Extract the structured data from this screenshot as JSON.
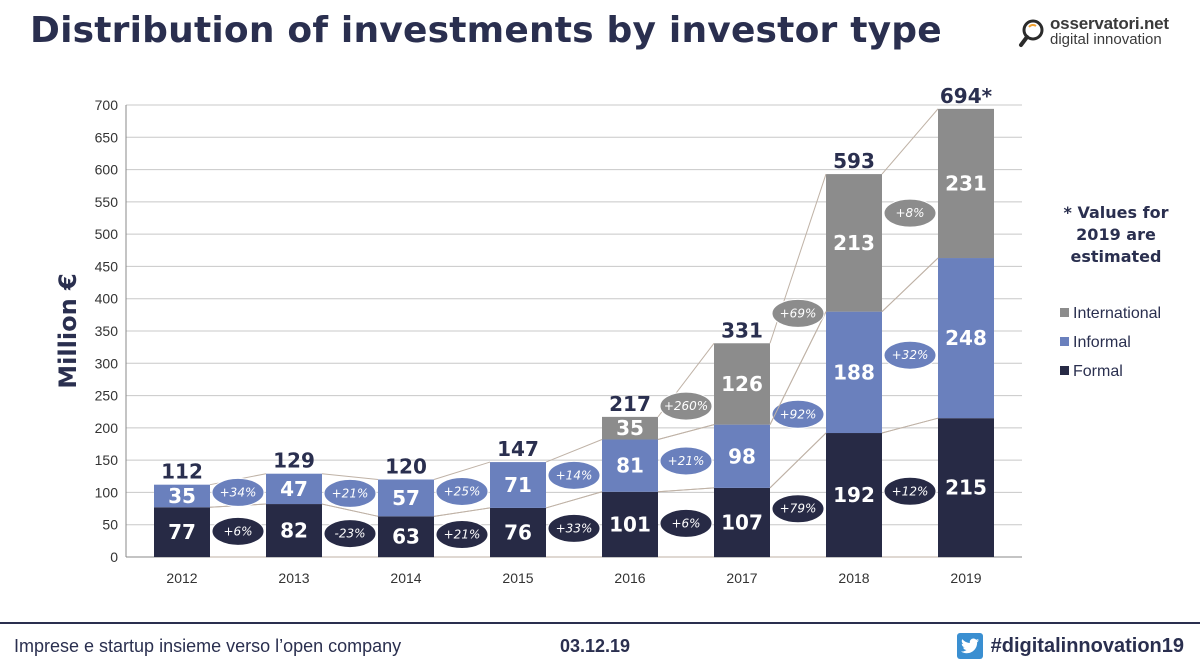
{
  "header": {
    "title": "Distribution of investments by investor type",
    "logo_line1": "osservatori.net",
    "logo_line2": "digital innovation",
    "logo_icon": "magnifier-icon"
  },
  "footer": {
    "left_text": "Imprese e startup insieme verso l’open company",
    "date": "03.12.19",
    "hashtag": "#digitalinnovation19",
    "twitter_icon": "twitter-icon"
  },
  "chart_data": {
    "type": "bar",
    "stacked": true,
    "title": "Distribution of investments by investor type",
    "xlabel": "",
    "ylabel": "Million €",
    "ylim": [
      0,
      700
    ],
    "yticks": [
      0,
      50,
      100,
      150,
      200,
      250,
      300,
      350,
      400,
      450,
      500,
      550,
      600,
      650,
      700
    ],
    "grid": true,
    "categories": [
      "2012",
      "2013",
      "2014",
      "2015",
      "2016",
      "2017",
      "2018",
      "2019"
    ],
    "series": [
      {
        "name": "Formal",
        "color": "#272a45",
        "values": [
          77,
          82,
          63,
          76,
          101,
          107,
          192,
          215
        ]
      },
      {
        "name": "Informal",
        "color": "#6a80bd",
        "values": [
          35,
          47,
          57,
          71,
          81,
          98,
          188,
          248
        ]
      },
      {
        "name": "International",
        "color": "#8c8c8c",
        "values": [
          null,
          null,
          null,
          null,
          35,
          126,
          213,
          231
        ]
      }
    ],
    "totals": [
      "112",
      "129",
      "120",
      "147",
      "217",
      "331",
      "593",
      "694*"
    ],
    "growth": {
      "Formal": [
        "+6%",
        "-23%",
        "+21%",
        "+33%",
        "+6%",
        "+79%",
        "+12%"
      ],
      "Informal": [
        "+34%",
        "+21%",
        "+25%",
        "+14%",
        "+21%",
        "+92%",
        "+32%"
      ],
      "International": [
        "+260%",
        "+69%",
        "+8%"
      ]
    },
    "legend_position": "right",
    "note": "* Values for 2019 are estimated"
  }
}
